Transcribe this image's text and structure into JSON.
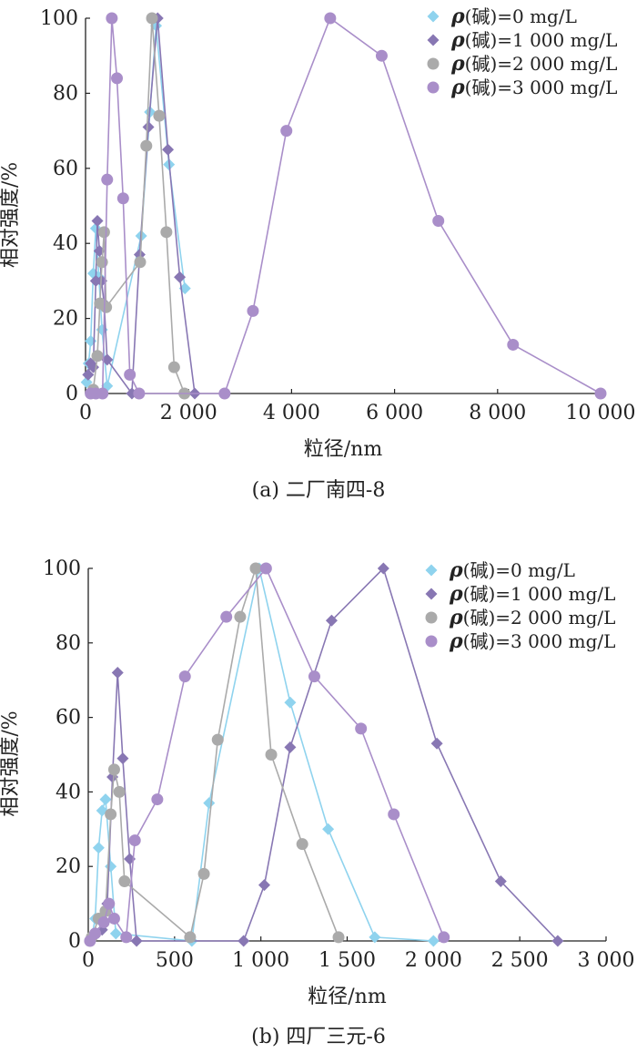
{
  "colors": {
    "s0": "#8fd3ee",
    "s1": "#8877b3",
    "s2": "#aaaaaa",
    "s3": "#a98ec9"
  },
  "chart_data": [
    {
      "type": "line",
      "caption": "(a) 二厂南四-8",
      "xlabel": "粒径/nm",
      "ylabel": "相对强度/%",
      "xlim": [
        0,
        10000
      ],
      "ylim": [
        0,
        100
      ],
      "xticks": [
        0,
        2000,
        4000,
        6000,
        8000,
        10000
      ],
      "xtick_labels": [
        "0",
        "2 000",
        "4 000",
        "6 000",
        "8 000",
        "10 000"
      ],
      "yticks": [
        0,
        20,
        40,
        60,
        80,
        100
      ],
      "ytick_labels": [
        "0",
        "20",
        "40",
        "60",
        "80",
        "100"
      ],
      "legend_position": "top-right",
      "series": [
        {
          "name": "ρ(碱)=0 mg/L",
          "label_prefix": "ρ",
          "label_rest": "(碱)=0 mg/L",
          "marker": "diamond",
          "color_key": "s0",
          "x": [
            20,
            60,
            100,
            150,
            200,
            260,
            320,
            420,
            1080,
            1250,
            1370,
            1620,
            1930
          ],
          "y": [
            3,
            8,
            14,
            32,
            44,
            31,
            17,
            2,
            42,
            75,
            98,
            61,
            28
          ]
        },
        {
          "name": "ρ(碱)=1 000 mg/L",
          "label_prefix": "ρ",
          "label_rest": "(碱)=1 000 mg/L",
          "marker": "diamond",
          "color_key": "s1",
          "x": [
            50,
            100,
            150,
            200,
            230,
            270,
            310,
            360,
            420,
            900,
            1050,
            1220,
            1400,
            1600,
            1830,
            2120
          ],
          "y": [
            5,
            8,
            7,
            30,
            46,
            38,
            30,
            24,
            9,
            0,
            37,
            71,
            100,
            65,
            31,
            0
          ]
        },
        {
          "name": "ρ(碱)=2 000 mg/L",
          "label_prefix": "ρ",
          "label_rest": "(碱)=2 000 mg/L",
          "marker": "circle",
          "color_key": "s2",
          "x": [
            150,
            230,
            280,
            320,
            360,
            400,
            1060,
            1180,
            1290,
            1430,
            1570,
            1720,
            1920
          ],
          "y": [
            1,
            10,
            24,
            35,
            43,
            23,
            35,
            66,
            100,
            74,
            43,
            7,
            0
          ]
        },
        {
          "name": "ρ(碱)=3 000 mg/L",
          "label_prefix": "ρ",
          "label_rest": "(碱)=3 000 mg/L",
          "marker": "circle",
          "color_key": "s3",
          "x": [
            100,
            200,
            330,
            420,
            510,
            610,
            730,
            860,
            1040,
            2700,
            3250,
            3900,
            4750,
            5750,
            6850,
            8300,
            10000
          ],
          "y": [
            0,
            0,
            0,
            57,
            100,
            84,
            52,
            5,
            0,
            0,
            22,
            70,
            100,
            90,
            46,
            13,
            0
          ]
        }
      ]
    },
    {
      "type": "line",
      "caption": "(b) 四厂三元-6",
      "xlabel": "粒径/nm",
      "ylabel": "相对强度/%",
      "xlim": [
        0,
        3000
      ],
      "ylim": [
        0,
        100
      ],
      "xticks": [
        0,
        500,
        1000,
        1500,
        2000,
        2500,
        3000
      ],
      "xtick_labels": [
        "0",
        "500",
        "1 000",
        "1 500",
        "2 000",
        "2 500",
        "3 000"
      ],
      "yticks": [
        0,
        20,
        40,
        60,
        80,
        100
      ],
      "ytick_labels": [
        "0",
        "20",
        "40",
        "60",
        "80",
        "100"
      ],
      "legend_position": "top-right",
      "series": [
        {
          "name": "ρ(碱)=0 mg/L",
          "label_prefix": "ρ",
          "label_rest": "(碱)=0 mg/L",
          "marker": "diamond",
          "color_key": "s0",
          "x": [
            20,
            40,
            60,
            80,
            100,
            130,
            160,
            600,
            700,
            990,
            1170,
            1390,
            1660,
            2000
          ],
          "y": [
            1,
            6,
            25,
            35,
            38,
            20,
            2,
            0,
            37,
            100,
            64,
            30,
            1,
            0
          ]
        },
        {
          "name": "ρ(碱)=1 000 mg/L",
          "label_prefix": "ρ",
          "label_rest": "(碱)=1 000 mg/L",
          "marker": "diamond",
          "color_key": "s1",
          "x": [
            10,
            40,
            80,
            110,
            140,
            170,
            200,
            240,
            280,
            900,
            1020,
            1170,
            1410,
            1710,
            2020,
            2390,
            2720
          ],
          "y": [
            0,
            2,
            3,
            10,
            44,
            72,
            49,
            22,
            0,
            0,
            15,
            52,
            86,
            100,
            53,
            16,
            0
          ]
        },
        {
          "name": "ρ(碱)=2 000 mg/L",
          "label_prefix": "ρ",
          "label_rest": "(碱)=2 000 mg/L",
          "marker": "circle",
          "color_key": "s2",
          "x": [
            20,
            60,
            100,
            130,
            150,
            180,
            210,
            590,
            670,
            750,
            880,
            970,
            1060,
            1240,
            1450
          ],
          "y": [
            1,
            6,
            8,
            34,
            46,
            40,
            16,
            1,
            18,
            54,
            87,
            100,
            50,
            26,
            1
          ]
        },
        {
          "name": "ρ(碱)=3 000 mg/L",
          "label_prefix": "ρ",
          "label_rest": "(碱)=3 000 mg/L",
          "marker": "circle",
          "color_key": "s3",
          "x": [
            10,
            40,
            90,
            120,
            150,
            220,
            270,
            400,
            560,
            800,
            1030,
            1310,
            1580,
            1770,
            2060
          ],
          "y": [
            0,
            2,
            5,
            10,
            6,
            1,
            27,
            38,
            71,
            87,
            100,
            71,
            57,
            34,
            1
          ]
        }
      ]
    }
  ]
}
